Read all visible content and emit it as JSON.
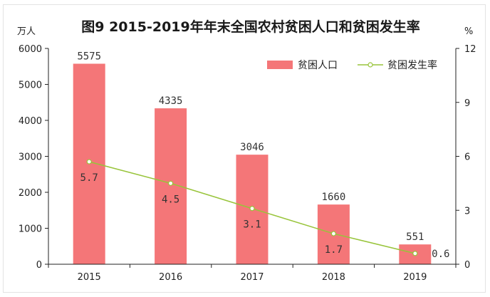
{
  "chart_data": {
    "type": "bar+line",
    "title": "图9   2015-2019年年末全国农村贫困人口和贫困发生率",
    "left_unit": "万人",
    "right_unit": "%",
    "categories": [
      "2015",
      "2016",
      "2017",
      "2018",
      "2019"
    ],
    "series": [
      {
        "name": "贫困人口",
        "type": "bar",
        "axis": "left",
        "values": [
          5575,
          4335,
          3046,
          1660,
          551
        ],
        "labels": [
          "5575",
          "4335",
          "3046",
          "1660",
          "551"
        ]
      },
      {
        "name": "贫困发生率",
        "type": "line",
        "axis": "right",
        "values": [
          5.7,
          4.5,
          3.1,
          1.7,
          0.6
        ],
        "labels": [
          "5.7",
          "4.5",
          "3.1",
          "1.7",
          "0.6"
        ]
      }
    ],
    "left_axis": {
      "ylim": [
        0,
        6000
      ],
      "ticks": [
        "0",
        "1000",
        "2000",
        "3000",
        "4000",
        "5000",
        "6000"
      ]
    },
    "right_axis": {
      "ylim": [
        0,
        12
      ],
      "ticks": [
        "0",
        "3",
        "6",
        "9",
        "12"
      ]
    },
    "legend_position": "top-right",
    "grid": false,
    "colors": {
      "bar": "#f47678",
      "line": "#98c43a",
      "marker_fill": "#ffffff",
      "axis": "#222222"
    }
  }
}
